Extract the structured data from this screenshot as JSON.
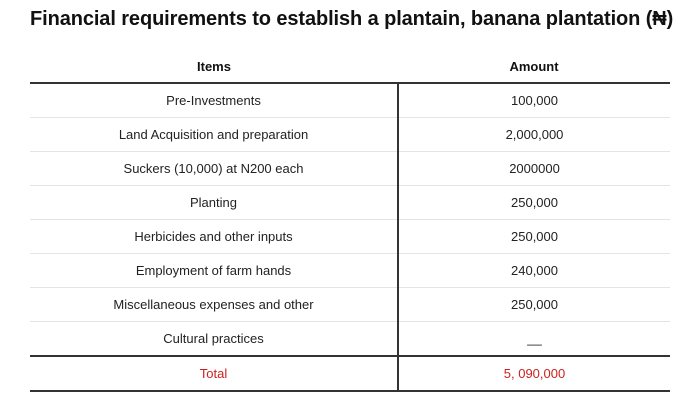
{
  "title": "Financial requirements to establish a plantain, banana plantation (₦)",
  "table": {
    "headers": [
      "Items",
      "Amount"
    ],
    "rows": [
      {
        "item": "Pre-Investments",
        "amount": "100,000"
      },
      {
        "item": "Land Acquisition and preparation",
        "amount": "2,000,000"
      },
      {
        "item": "Suckers (10,000) at N200 each",
        "amount": "2000000"
      },
      {
        "item": "Planting",
        "amount": "250,000"
      },
      {
        "item": "Herbicides and other inputs",
        "amount": "250,000"
      },
      {
        "item": "Employment of farm hands",
        "amount": "240,000"
      },
      {
        "item": "Miscellaneous expenses and other",
        "amount": "250,000"
      },
      {
        "item": "Cultural practices",
        "amount": "__"
      }
    ],
    "total": {
      "label": "Total",
      "amount": "5, 090,000"
    }
  },
  "colors": {
    "total_text": "#cc1f1f",
    "rule_dark": "#333333",
    "rule_light": "#e4e4e4"
  }
}
